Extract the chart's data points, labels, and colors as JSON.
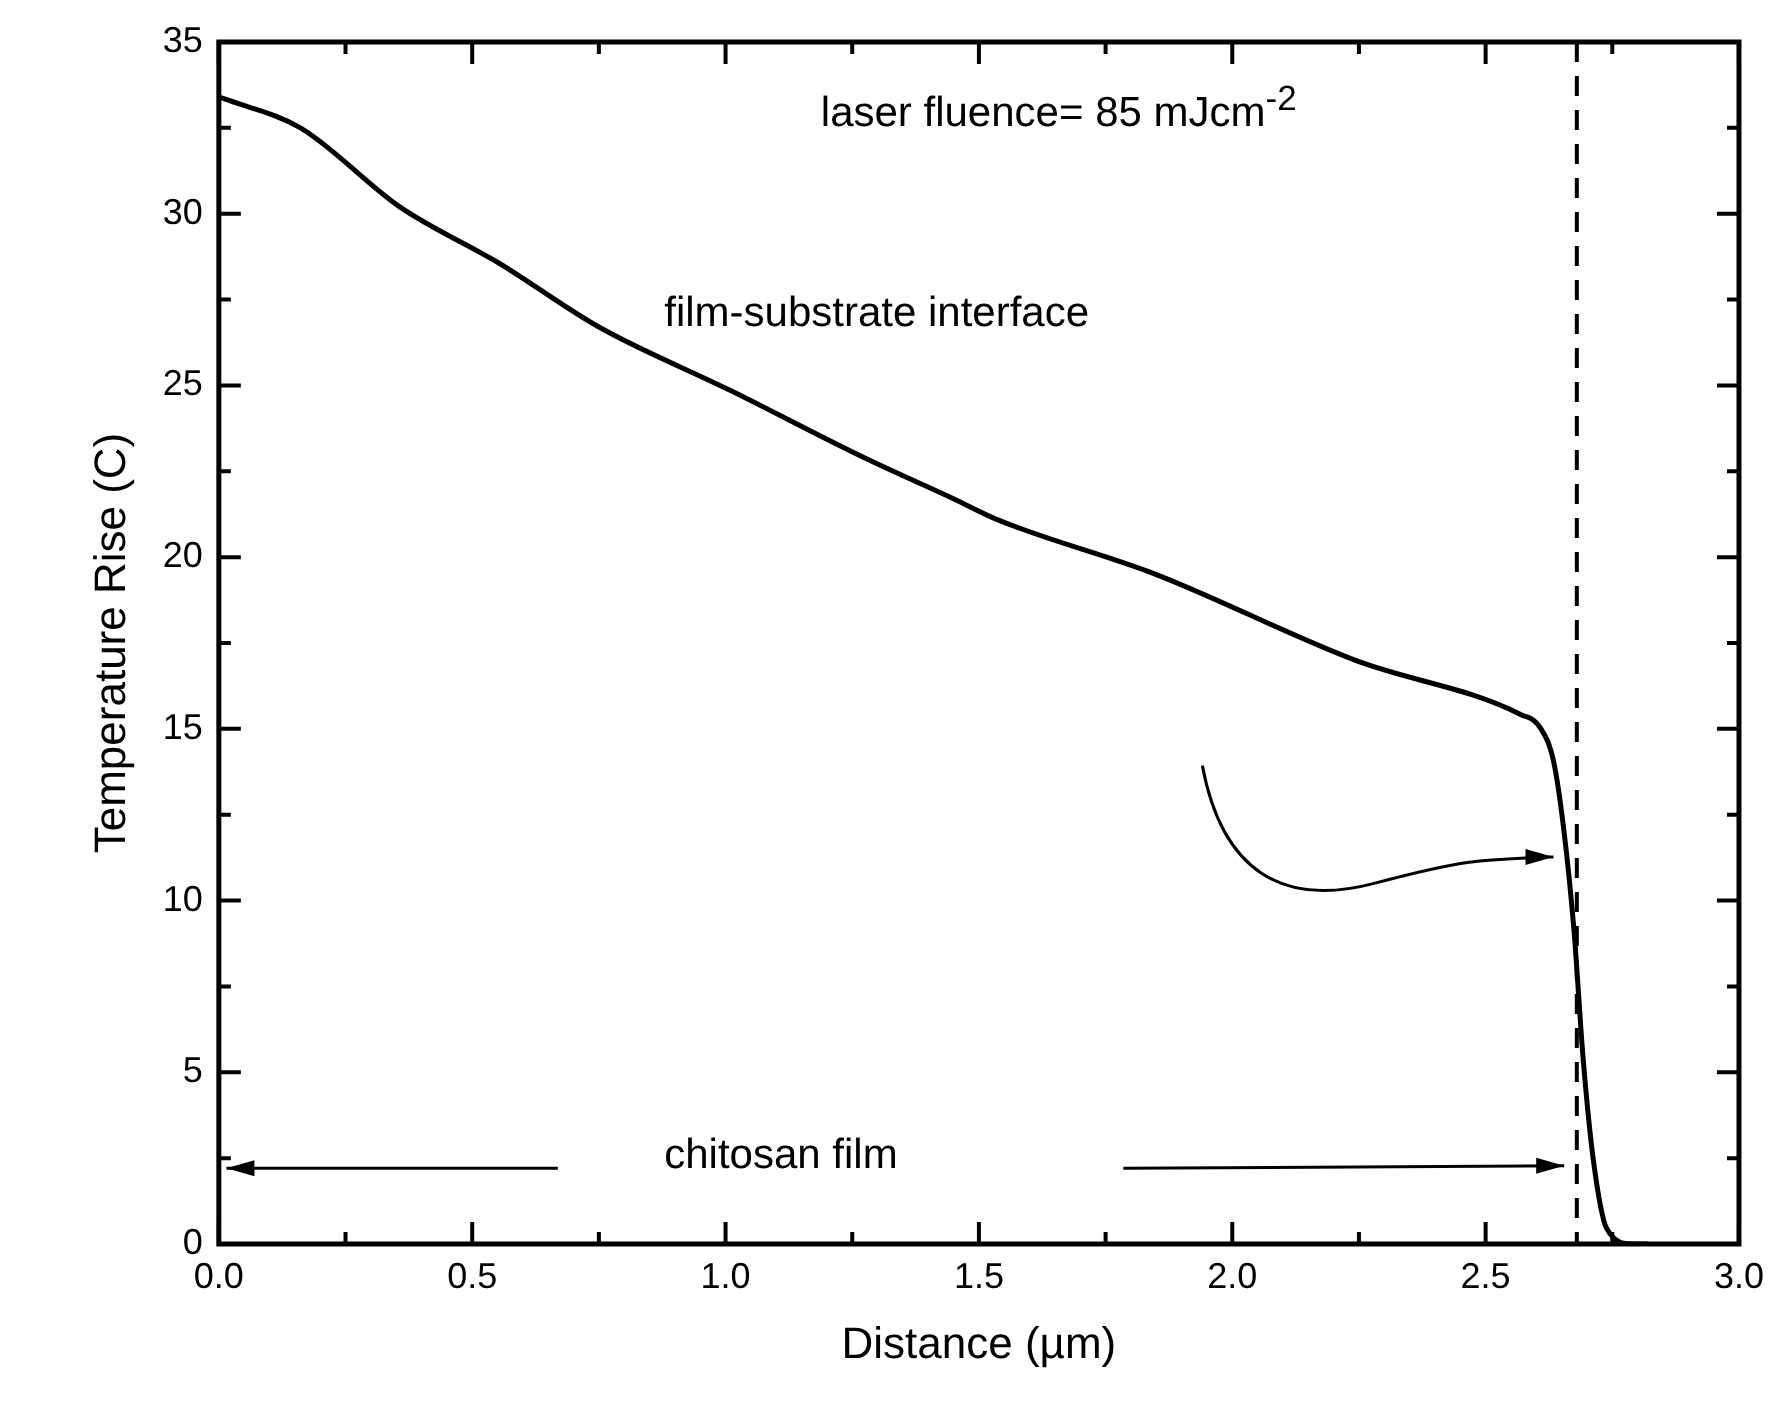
{
  "chart_data": {
    "type": "line",
    "xlabel": "Distance (µm)",
    "ylabel": "Temperature Rise (C)",
    "x": [
      0,
      0.02,
      0.161,
      0.357,
      0.554,
      0.75,
      1.01,
      1.273,
      1.457,
      1.535,
      1.849,
      2.242,
      2.569,
      2.608,
      2.634,
      2.654,
      2.674,
      2.693,
      2.713,
      2.739,
      2.79,
      2.82
    ],
    "series": [
      {
        "color": "#000000",
        "values": [
          33.4,
          33.3,
          32.5,
          30.2,
          28.55,
          26.7,
          24.85,
          22.9,
          21.65,
          21.1,
          19.5,
          17.0,
          15.42,
          15.03,
          14.06,
          12.1,
          9.2,
          5.3,
          2.4,
          0.45,
          0,
          0
        ]
      }
    ],
    "xlim": [
      0,
      3
    ],
    "xticks": [
      {
        "value": 0,
        "label": "0.0"
      },
      {
        "value": 0.25,
        "label": null
      },
      {
        "value": 0.5,
        "label": "0.5"
      },
      {
        "value": 0.75,
        "label": null
      },
      {
        "value": 1,
        "label": "1.0"
      },
      {
        "value": 1.25,
        "label": null
      },
      {
        "value": 1.5,
        "label": "1.5"
      },
      {
        "value": 1.75,
        "label": null
      },
      {
        "value": 2,
        "label": "2.0"
      },
      {
        "value": 2.25,
        "label": null
      },
      {
        "value": 2.5,
        "label": "2.5"
      },
      {
        "value": 2.75,
        "label": null
      },
      {
        "value": 3,
        "label": "3.0"
      }
    ],
    "ylim": [
      0,
      35
    ],
    "yticks": [
      0,
      {
        "value": 2.5,
        "label": null
      },
      5,
      {
        "value": 7.5,
        "label": null
      },
      10,
      {
        "value": 12.5,
        "label": null
      },
      15,
      {
        "value": 17.5,
        "label": null
      },
      20,
      {
        "value": 22.5,
        "label": null
      },
      25,
      {
        "value": 27.5,
        "label": null
      },
      30,
      {
        "value": 32.5,
        "label": null
      },
      35
    ],
    "ref_lines": [
      {
        "axis": "x",
        "value": 2.68,
        "color": "#000000",
        "line_style": "dashed"
      }
    ],
    "annotations": [
      "laser fluence= 85 mJcm$^{-2}$",
      "film-substrate interface",
      "chitosan film"
    ],
    "grid": false,
    "legend": false,
    "marker": "none",
    "line_style": "solid"
  }
}
